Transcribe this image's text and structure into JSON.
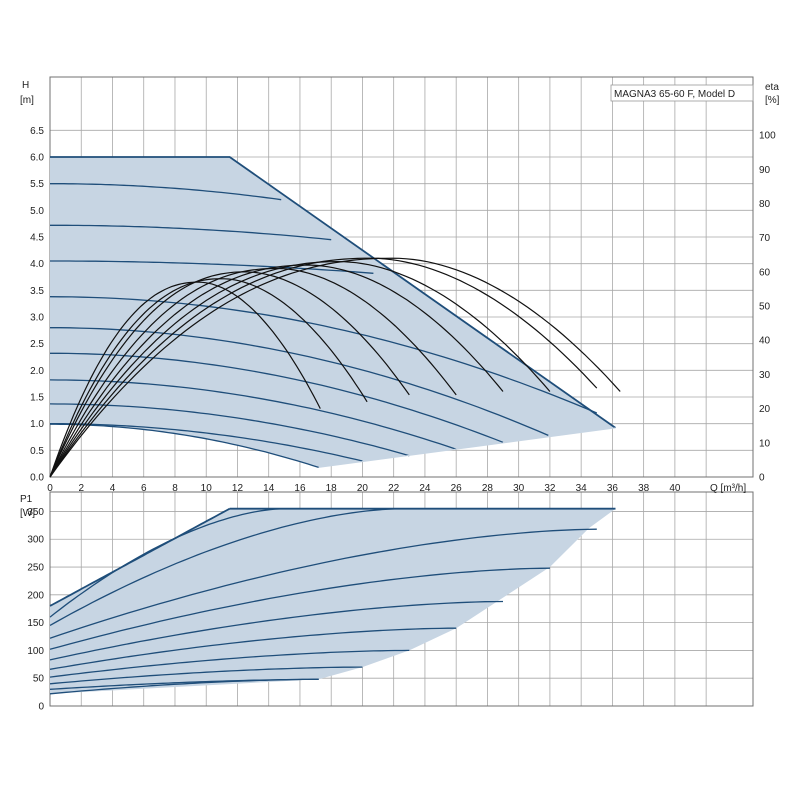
{
  "chart_data": [
    {
      "type": "line",
      "title": "MAGNA3 65-60 F, Model D",
      "xlabel": "Q [m³/h]",
      "ylabel": "H",
      "ylabel_unit": "[m]",
      "y2label": "eta",
      "y2label_unit": "[%]",
      "xlim": [
        0,
        45
      ],
      "ylim": [
        0,
        7.5
      ],
      "y2lim": [
        0,
        117
      ],
      "x_ticks": [
        0,
        2,
        4,
        6,
        8,
        10,
        12,
        14,
        16,
        18,
        20,
        22,
        24,
        26,
        28,
        30,
        32,
        34,
        36,
        38,
        40
      ],
      "y_ticks": [
        0.0,
        0.5,
        1.0,
        1.5,
        2.0,
        2.5,
        3.0,
        3.5,
        4.0,
        4.5,
        5.0,
        5.5,
        6.0,
        6.5
      ],
      "y2_ticks": [
        0,
        10,
        20,
        30,
        40,
        50,
        60,
        70,
        80,
        90,
        100
      ],
      "grid": true,
      "colors": {
        "curve": "#1f4e7a",
        "envelope": "#1f4e7a",
        "fill": "#c7d5e3",
        "efficiency": "#111111"
      },
      "envelope": {
        "x": [
          0,
          11.5,
          36.2,
          33,
          26,
          20,
          17.2
        ],
        "y": [
          6.0,
          6.0,
          0.92,
          1.5,
          1.2,
          0.7,
          0.18
        ]
      },
      "head_curves": [
        {
          "h0": 5.5,
          "x_end": 14.8,
          "y_end": 5.2
        },
        {
          "h0": 4.72,
          "x_end": 18.0,
          "y_end": 4.45
        },
        {
          "h0": 4.05,
          "x_end": 20.7,
          "y_end": 3.82
        },
        {
          "h0": 3.38,
          "x_end": 35.0,
          "y_end": 1.2
        },
        {
          "h0": 2.8,
          "x_end": 31.9,
          "y_end": 0.78
        },
        {
          "h0": 2.32,
          "x_end": 29.0,
          "y_end": 0.65
        },
        {
          "h0": 1.82,
          "x_end": 26.0,
          "y_end": 0.52
        },
        {
          "h0": 1.37,
          "x_end": 23.0,
          "y_end": 0.4
        },
        {
          "h0": 1.0,
          "x_end": 20.0,
          "y_end": 0.3
        },
        {
          "h0": 0.99,
          "x_end": 17.2,
          "y_end": 0.18
        }
      ],
      "efficiency_curves": [
        {
          "x_end": 17.3,
          "eta_end": 20,
          "x_peak": 9.5,
          "eta_peak": 57
        },
        {
          "x_end": 20.3,
          "eta_end": 22,
          "x_peak": 11.0,
          "eta_peak": 58
        },
        {
          "x_end": 23.0,
          "eta_end": 24,
          "x_peak": 12.5,
          "eta_peak": 60
        },
        {
          "x_end": 26.0,
          "eta_end": 24,
          "x_peak": 14.5,
          "eta_peak": 61
        },
        {
          "x_end": 29.0,
          "eta_end": 25,
          "x_peak": 16.5,
          "eta_peak": 62
        },
        {
          "x_end": 32.0,
          "eta_end": 25,
          "x_peak": 18.5,
          "eta_peak": 63
        },
        {
          "x_end": 35.0,
          "eta_end": 26,
          "x_peak": 20.5,
          "eta_peak": 64
        },
        {
          "x_end": 36.5,
          "eta_end": 25,
          "x_peak": 22.0,
          "eta_peak": 64
        }
      ]
    },
    {
      "type": "line",
      "xlabel": "",
      "ylabel": "P1",
      "ylabel_unit": "[W]",
      "xlim": [
        0,
        45
      ],
      "ylim": [
        0,
        385
      ],
      "x_ticks": [
        0,
        2,
        4,
        6,
        8,
        10,
        12,
        14,
        16,
        18,
        20,
        22,
        24,
        26,
        28,
        30,
        32,
        34,
        36,
        38,
        40
      ],
      "y_ticks": [
        0,
        50,
        100,
        150,
        200,
        250,
        300,
        350
      ],
      "grid": true,
      "envelope": {
        "x": [
          0,
          11.5,
          36.2,
          34.5,
          32,
          26,
          23,
          20,
          17.2,
          0
        ],
        "y": [
          180,
          355,
          355,
          320,
          250,
          140,
          100,
          70,
          48,
          22
        ]
      },
      "power_curves": [
        {
          "p0": 180,
          "x_end": 11.5,
          "p_end": 355
        },
        {
          "p0": 160,
          "x_end": 15.0,
          "p_end": 355
        },
        {
          "p0": 145,
          "x_end": 22.5,
          "p_end": 355
        },
        {
          "p0": 122,
          "x_end": 35.0,
          "p_end": 318
        },
        {
          "p0": 102,
          "x_end": 32.0,
          "p_end": 248
        },
        {
          "p0": 83,
          "x_end": 29.0,
          "p_end": 188
        },
        {
          "p0": 66,
          "x_end": 26.0,
          "p_end": 140
        },
        {
          "p0": 52,
          "x_end": 23.0,
          "p_end": 100
        },
        {
          "p0": 40,
          "x_end": 20.0,
          "p_end": 70
        },
        {
          "p0": 30,
          "x_end": 17.2,
          "p_end": 48
        },
        {
          "p0": 22,
          "x_end": 17.2,
          "p_end": 48
        }
      ]
    }
  ]
}
